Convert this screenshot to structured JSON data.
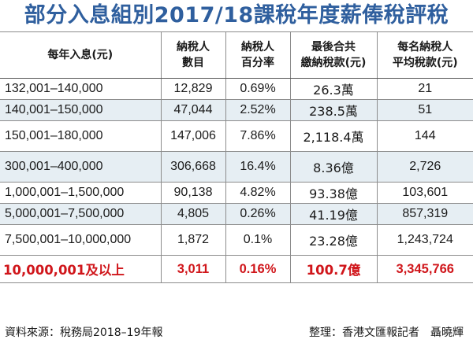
{
  "title": "部分入息組別2017/18課稅年度薪俸稅評稅",
  "table": {
    "headers": [
      "每年入息(元)",
      "納稅人\n數目",
      "納稅人\n百分率",
      "最後合共\n繳納稅款(元)",
      "每名納稅人\n平均稅款(元)"
    ],
    "rows": [
      [
        "132,001–140,000",
        "12,829",
        "0.69%",
        "26.3萬",
        "21"
      ],
      [
        "140,001–150,000",
        "47,044",
        "2.52%",
        "238.5萬",
        "51"
      ],
      [
        "150,001–180,000",
        "147,006",
        "7.86%",
        "2,118.4萬",
        "144"
      ],
      [
        "300,001–400,000",
        "306,668",
        "16.4%",
        "8.36億",
        "2,726"
      ],
      [
        "1,000,001–1,500,000",
        "90,138",
        "4.82%",
        "93.38億",
        "103,601"
      ],
      [
        "5,000,001–7,500,000",
        "4,805",
        "0.26%",
        "41.19億",
        "857,319"
      ],
      [
        "7,500,001–10,000,000",
        "1,872",
        "0.1%",
        "23.28億",
        "1,243,724"
      ]
    ],
    "total_row": [
      "10,000,001及以上",
      "3,011",
      "0.16%",
      "100.7億",
      "3,345,766"
    ]
  },
  "footer": {
    "source": "資料來源：稅務局2018–19年報",
    "credit": "整理：香港文匯報記者　聶曉輝"
  },
  "colors": {
    "title": "#2f5f9e",
    "highlight_row": "#e6eef3",
    "total_text": "#d0161b"
  }
}
